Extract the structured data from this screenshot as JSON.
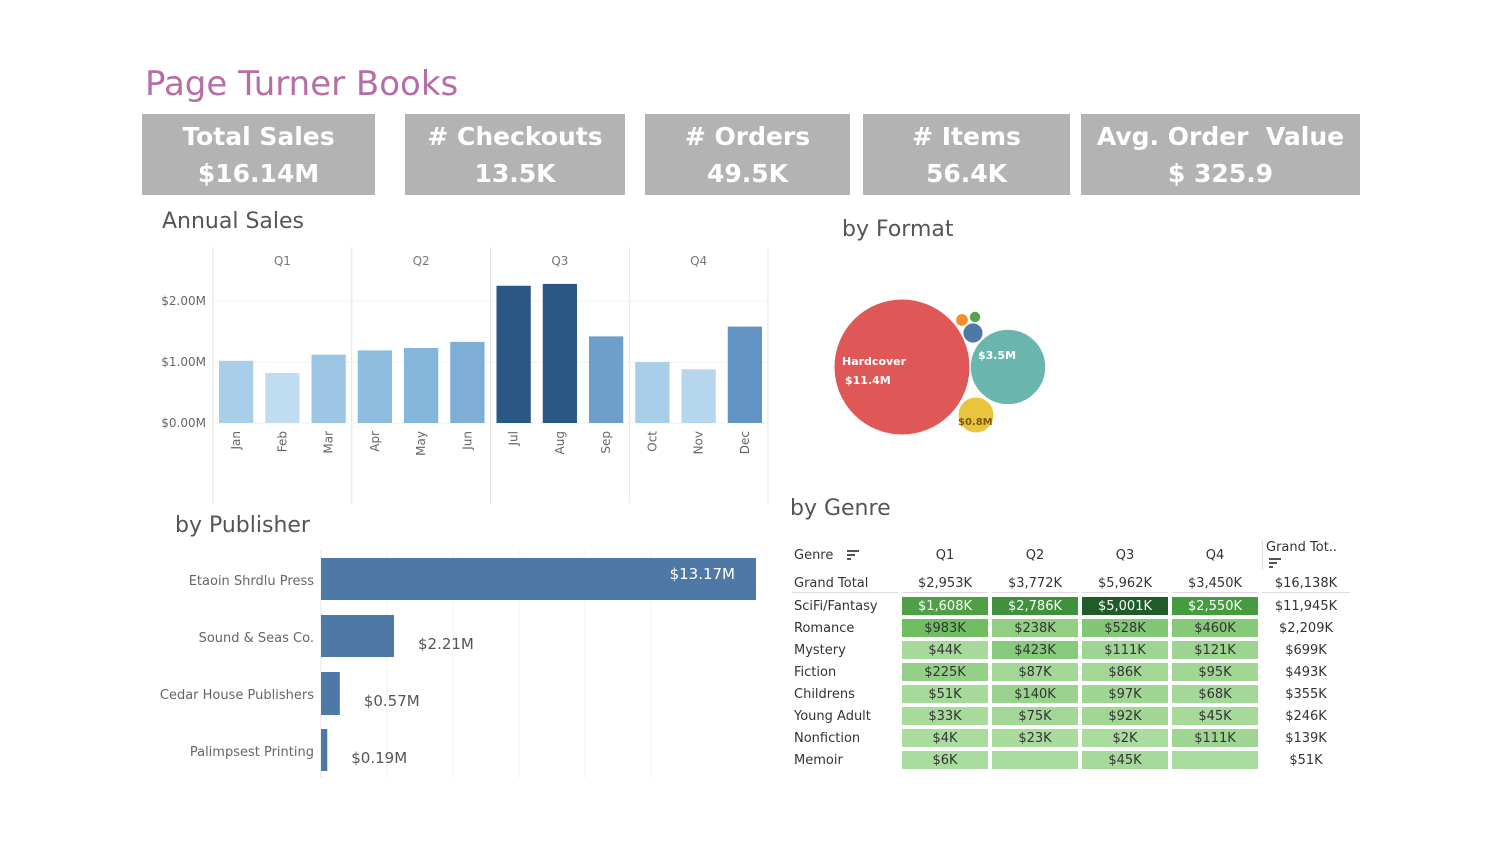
{
  "title": "Page Turner Books",
  "kpis": [
    {
      "label": "Total Sales",
      "value": "$16.14M"
    },
    {
      "label": "# Checkouts",
      "value": "13.5K"
    },
    {
      "label": "# Orders",
      "value": "49.5K"
    },
    {
      "label": "# Items",
      "value": "56.4K"
    },
    {
      "label": "Avg. Order  Value",
      "value": "$ 325.9"
    }
  ],
  "sections": {
    "annual": "Annual Sales",
    "format": "by Format",
    "publisher": "by Publisher",
    "genre": "by Genre"
  },
  "chart_data": [
    {
      "type": "bar",
      "title": "Annual Sales",
      "quarters": [
        "Q1",
        "Q2",
        "Q3",
        "Q4"
      ],
      "categories": [
        "Jan",
        "Feb",
        "Mar",
        "Apr",
        "May",
        "Jun",
        "Jul",
        "Aug",
        "Sep",
        "Oct",
        "Nov",
        "Dec"
      ],
      "values": [
        1.02,
        0.82,
        1.12,
        1.19,
        1.23,
        1.33,
        2.25,
        2.28,
        1.42,
        1.0,
        0.88,
        1.58
      ],
      "yticks": [
        "$2.00M",
        "$1.00M",
        "$0.00M"
      ],
      "ylim": [
        0,
        2.4
      ],
      "colors": [
        "#a9cfe8",
        "#bfdcf0",
        "#9cc6e4",
        "#8dbcde",
        "#84b5da",
        "#7eaed6",
        "#2a5783",
        "#2a5783",
        "#6e9fcb",
        "#a9cfe8",
        "#b5d6ec",
        "#6194c2"
      ]
    },
    {
      "type": "bubble",
      "title": "by Format",
      "items": [
        {
          "label": "Hardcover",
          "value_label": "$11.4M",
          "value": 11.4,
          "color": "#e05758"
        },
        {
          "label": "",
          "value_label": "$3.5M",
          "value": 3.5,
          "color": "#6ab6ae"
        },
        {
          "label": "",
          "value_label": "$0.8M",
          "value": 0.8,
          "color": "#e9c43e"
        },
        {
          "label": "",
          "value_label": "",
          "value": 0.25,
          "color": "#4e79a7"
        },
        {
          "label": "",
          "value_label": "",
          "value": 0.1,
          "color": "#f28e2b"
        },
        {
          "label": "",
          "value_label": "",
          "value": 0.08,
          "color": "#59a14f"
        }
      ]
    },
    {
      "type": "bar",
      "orientation": "horizontal",
      "title": "by Publisher",
      "categories": [
        "Etaoin Shrdlu Press",
        "Sound & Seas Co.",
        "Cedar House Publishers",
        "Palimpsest Printing"
      ],
      "values": [
        13.17,
        2.21,
        0.57,
        0.19
      ],
      "labels": [
        "$13.17M",
        "$2.21M",
        "$0.57M",
        "$0.19M"
      ],
      "color": "#4e79a7"
    },
    {
      "type": "table",
      "title": "by Genre",
      "headers": [
        "Genre",
        "Q1",
        "Q2",
        "Q3",
        "Q4",
        "Grand Tot.."
      ],
      "rows": [
        {
          "genre": "Grand Total",
          "q": [
            "$2,953K",
            "$3,772K",
            "$5,962K",
            "$3,450K"
          ],
          "total": "$16,138K",
          "colors": [
            "",
            "",
            "",
            ""
          ]
        },
        {
          "genre": "SciFi/Fantasy",
          "q": [
            "$1,608K",
            "$2,786K",
            "$5,001K",
            "$2,550K"
          ],
          "total": "$11,945K",
          "colors": [
            "#4f9f45",
            "#3f913b",
            "#1f5c2a",
            "#469a40"
          ]
        },
        {
          "genre": "Romance",
          "q": [
            "$983K",
            "$238K",
            "$528K",
            "$460K"
          ],
          "total": "$2,209K",
          "colors": [
            "#6fbe62",
            "#92cf85",
            "#82c775",
            "#86c979"
          ]
        },
        {
          "genre": "Mystery",
          "q": [
            "$44K",
            "$423K",
            "$111K",
            "$121K"
          ],
          "total": "$699K",
          "colors": [
            "#a6d99a",
            "#88ca7b",
            "#9fd593",
            "#9dd491"
          ]
        },
        {
          "genre": "Fiction",
          "q": [
            "$225K",
            "$87K",
            "$86K",
            "$95K"
          ],
          "total": "$493K",
          "colors": [
            "#94d087",
            "#a2d796",
            "#a2d796",
            "#a1d695"
          ]
        },
        {
          "genre": "Childrens",
          "q": [
            "$51K",
            "$140K",
            "$97K",
            "$68K"
          ],
          "total": "$355K",
          "colors": [
            "#a6d99a",
            "#9ad38e",
            "#a0d694",
            "#a4d898"
          ]
        },
        {
          "genre": "Young Adult",
          "q": [
            "$33K",
            "$75K",
            "$92K",
            "$45K"
          ],
          "total": "$246K",
          "colors": [
            "#a8da9c",
            "#a3d797",
            "#a1d695",
            "#a7d99b"
          ]
        },
        {
          "genre": "Nonfiction",
          "q": [
            "$4K",
            "$23K",
            "$2K",
            "$111K"
          ],
          "total": "$139K",
          "colors": [
            "#abdc9f",
            "#a9db9d",
            "#abdc9f",
            "#9fd593"
          ]
        },
        {
          "genre": "Memoir",
          "q": [
            "$6K",
            "",
            "$45K",
            ""
          ],
          "total": "$51K",
          "colors": [
            "#abdc9f",
            "#abdc9f",
            "#a7d99b",
            "#abdc9f"
          ]
        }
      ]
    }
  ]
}
